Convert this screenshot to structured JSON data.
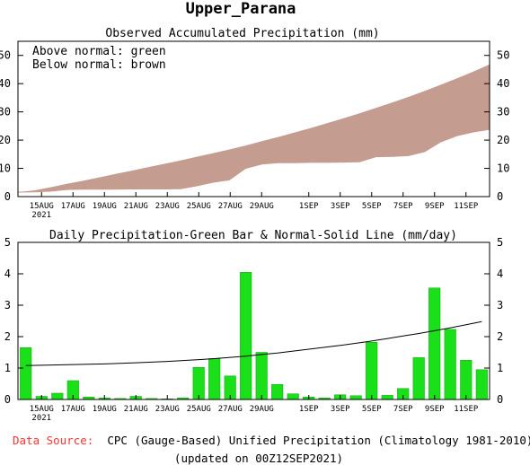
{
  "header": {
    "title": "Upper_Parana"
  },
  "footer": {
    "source_label": "Data Source:",
    "source_text": "CPC (Gauge-Based) Unified Precipitation (Climatology 1981-2010)",
    "updated": "(updated on 00Z12SEP2021)"
  },
  "colors": {
    "source_label": "#ff3333",
    "deficit_fill": "#c49c90",
    "bar_fill": "#19e019",
    "bar_edge": "#0aa50a"
  },
  "chart_data": [
    {
      "type": "area",
      "title": "Observed Accumulated Precipitation (mm)",
      "annotations": [
        "Above normal: green",
        "Below normal: brown"
      ],
      "x_tick_labels": [
        "15AUG",
        "17AUG",
        "19AUG",
        "21AUG",
        "23AUG",
        "25AUG",
        "27AUG",
        "29AUG",
        "1SEP",
        "3SEP",
        "5SEP",
        "7SEP",
        "9SEP",
        "11SEP"
      ],
      "x_sub_label": "2021",
      "ylim": [
        0,
        55
      ],
      "y_ticks": [
        0,
        10,
        20,
        30,
        40,
        50
      ],
      "grid": false,
      "dates": [
        "14AUG",
        "15AUG",
        "16AUG",
        "17AUG",
        "18AUG",
        "19AUG",
        "20AUG",
        "21AUG",
        "22AUG",
        "23AUG",
        "24AUG",
        "25AUG",
        "26AUG",
        "27AUG",
        "28AUG",
        "29AUG",
        "30AUG",
        "31AUG",
        "1SEP",
        "2SEP",
        "3SEP",
        "4SEP",
        "5SEP",
        "6SEP",
        "7SEP",
        "8SEP",
        "9SEP",
        "10SEP",
        "11SEP",
        "12SEP"
      ],
      "series": [
        {
          "name": "Observed",
          "values": [
            1.6,
            1.7,
            1.9,
            2.5,
            2.6,
            2.6,
            2.6,
            2.7,
            2.7,
            2.7,
            2.8,
            3.8,
            5.1,
            5.9,
            10.0,
            11.5,
            12.0,
            12.0,
            12.1,
            12.1,
            12.2,
            12.3,
            14.1,
            14.2,
            14.5,
            15.9,
            19.4,
            21.6,
            22.9,
            23.8
          ]
        },
        {
          "name": "Normal",
          "values": [
            1.1,
            2.2,
            3.3,
            4.5,
            5.6,
            6.8,
            8.0,
            9.2,
            10.4,
            11.6,
            12.8,
            14.1,
            15.4,
            16.7,
            18.1,
            19.6,
            21.1,
            22.7,
            24.3,
            26.0,
            27.7,
            29.5,
            31.4,
            33.3,
            35.3,
            37.4,
            39.6,
            41.9,
            44.3,
            46.8
          ]
        }
      ]
    },
    {
      "type": "bar",
      "title": "Daily Precipitation-Green Bar & Normal-Solid Line (mm/day)",
      "x_tick_labels": [
        "15AUG",
        "17AUG",
        "19AUG",
        "21AUG",
        "23AUG",
        "25AUG",
        "27AUG",
        "29AUG",
        "1SEP",
        "3SEP",
        "5SEP",
        "7SEP",
        "9SEP",
        "11SEP"
      ],
      "x_sub_label": "2021",
      "ylim": [
        0,
        5
      ],
      "y_ticks": [
        0,
        1,
        2,
        3,
        4,
        5
      ],
      "grid": false,
      "dates": [
        "14AUG",
        "15AUG",
        "16AUG",
        "17AUG",
        "18AUG",
        "19AUG",
        "20AUG",
        "21AUG",
        "22AUG",
        "23AUG",
        "24AUG",
        "25AUG",
        "26AUG",
        "27AUG",
        "28AUG",
        "29AUG",
        "30AUG",
        "31AUG",
        "1SEP",
        "2SEP",
        "3SEP",
        "4SEP",
        "5SEP",
        "6SEP",
        "7SEP",
        "8SEP",
        "9SEP",
        "10SEP",
        "11SEP",
        "12SEP"
      ],
      "series": [
        {
          "name": "Daily Precipitation",
          "values": [
            1.65,
            0.1,
            0.2,
            0.6,
            0.08,
            0.05,
            0.03,
            0.1,
            0.03,
            0.02,
            0.05,
            1.02,
            1.3,
            0.75,
            4.05,
            1.5,
            0.48,
            0.18,
            0.08,
            0.05,
            0.15,
            0.12,
            1.82,
            0.13,
            0.35,
            1.33,
            3.55,
            2.23,
            1.25,
            0.95
          ]
        },
        {
          "name": "Normal",
          "values": [
            1.08,
            1.09,
            1.1,
            1.11,
            1.12,
            1.13,
            1.15,
            1.17,
            1.19,
            1.21,
            1.24,
            1.27,
            1.3,
            1.34,
            1.38,
            1.43,
            1.48,
            1.54,
            1.6,
            1.66,
            1.72,
            1.79,
            1.86,
            1.94,
            2.02,
            2.1,
            2.19,
            2.28,
            2.38,
            2.48
          ]
        }
      ]
    }
  ]
}
